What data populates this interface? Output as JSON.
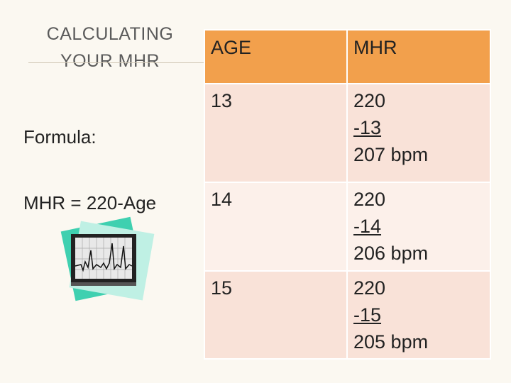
{
  "header": {
    "title_lines": [
      "CALCULATING",
      "YOUR MHR"
    ]
  },
  "formula": {
    "label": "Formula:",
    "text": "MHR = 220-Age"
  },
  "table": {
    "columns": [
      "AGE",
      "MHR"
    ],
    "rows": [
      {
        "age": "13",
        "mhr": [
          "220",
          "-13",
          "207 bpm"
        ]
      },
      {
        "age": "14",
        "mhr": [
          "220",
          "-14",
          "206 bpm"
        ]
      },
      {
        "age": "15",
        "mhr": [
          "220",
          "-15",
          "205 bpm"
        ]
      }
    ]
  }
}
